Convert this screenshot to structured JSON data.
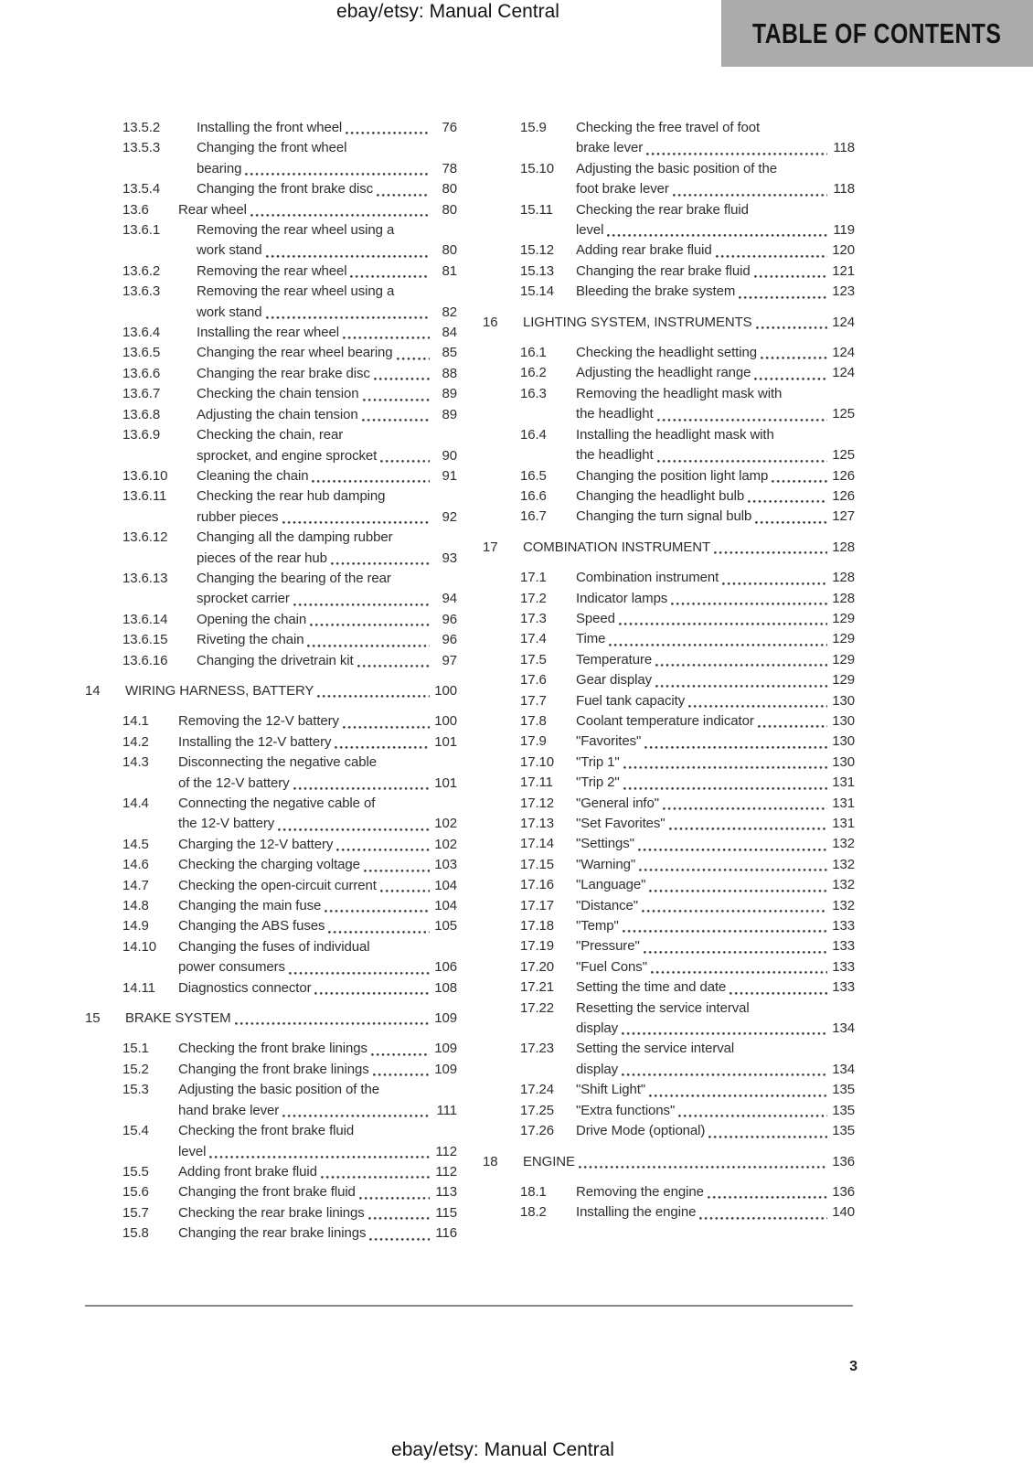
{
  "header": {
    "site_label": "ebay/etsy: Manual Central",
    "banner_title": "TABLE OF CONTENTS"
  },
  "footer": {
    "site_label": "ebay/etsy: Manual Central",
    "page_number": "3"
  },
  "colors": {
    "banner_bg": "#ababab",
    "body_text": "#2e2e2e",
    "rule": "#8a8a8a"
  },
  "toc": {
    "left": [
      {
        "level": "sub2",
        "num": "13.5.2",
        "title": "Installing the front wheel",
        "page": "76"
      },
      {
        "level": "sub2",
        "num": "13.5.3",
        "title": "Changing the front wheel\nbearing",
        "page": "78"
      },
      {
        "level": "sub2",
        "num": "13.5.4",
        "title": "Changing the front brake disc",
        "page": "80"
      },
      {
        "level": "sub",
        "num": "13.6",
        "title": "Rear wheel",
        "page": "80"
      },
      {
        "level": "sub2",
        "num": "13.6.1",
        "title": "Removing the rear wheel using a\nwork stand",
        "page": "80"
      },
      {
        "level": "sub2",
        "num": "13.6.2",
        "title": "Removing the rear wheel",
        "page": "81"
      },
      {
        "level": "sub2",
        "num": "13.6.3",
        "title": "Removing the rear wheel using a\nwork stand",
        "page": "82"
      },
      {
        "level": "sub2",
        "num": "13.6.4",
        "title": "Installing the rear wheel",
        "page": "84"
      },
      {
        "level": "sub2",
        "num": "13.6.5",
        "title": "Changing the rear wheel bearing",
        "page": "85"
      },
      {
        "level": "sub2",
        "num": "13.6.6",
        "title": "Changing the rear brake disc",
        "page": "88"
      },
      {
        "level": "sub2",
        "num": "13.6.7",
        "title": "Checking the chain tension",
        "page": "89"
      },
      {
        "level": "sub2",
        "num": "13.6.8",
        "title": "Adjusting the chain tension",
        "page": "89"
      },
      {
        "level": "sub2",
        "num": "13.6.9",
        "title": "Checking the chain, rear\nsprocket, and engine sprocket",
        "page": "90"
      },
      {
        "level": "sub2",
        "num": "13.6.10",
        "title": "Cleaning the chain",
        "page": "91"
      },
      {
        "level": "sub2",
        "num": "13.6.11",
        "title": "Checking the rear hub damping\nrubber pieces",
        "page": "92"
      },
      {
        "level": "sub2",
        "num": "13.6.12",
        "title": "Changing all the damping rubber\npieces of the rear hub",
        "page": "93"
      },
      {
        "level": "sub2",
        "num": "13.6.13",
        "title": "Changing the bearing of the rear\nsprocket carrier",
        "page": "94"
      },
      {
        "level": "sub2",
        "num": "13.6.14",
        "title": "Opening the chain",
        "page": "96"
      },
      {
        "level": "sub2",
        "num": "13.6.15",
        "title": "Riveting the chain",
        "page": "96"
      },
      {
        "level": "sub2",
        "num": "13.6.16",
        "title": "Changing the drivetrain kit",
        "page": "97"
      },
      {
        "level": "section",
        "num": "14",
        "title": "WIRING HARNESS, BATTERY",
        "page": "100"
      },
      {
        "level": "sub",
        "num": "14.1",
        "title": "Removing the 12-V battery",
        "page": "100"
      },
      {
        "level": "sub",
        "num": "14.2",
        "title": "Installing the 12-V battery",
        "page": "101"
      },
      {
        "level": "sub",
        "num": "14.3",
        "title": "Disconnecting the negative cable\nof the 12-V battery",
        "page": "101"
      },
      {
        "level": "sub",
        "num": "14.4",
        "title": "Connecting the negative cable of\nthe 12-V battery",
        "page": "102"
      },
      {
        "level": "sub",
        "num": "14.5",
        "title": "Charging the 12-V battery",
        "page": "102"
      },
      {
        "level": "sub",
        "num": "14.6",
        "title": "Checking the charging voltage",
        "page": "103"
      },
      {
        "level": "sub",
        "num": "14.7",
        "title": "Checking the open-circuit current",
        "page": "104"
      },
      {
        "level": "sub",
        "num": "14.8",
        "title": "Changing the main fuse",
        "page": "104"
      },
      {
        "level": "sub",
        "num": "14.9",
        "title": "Changing the ABS fuses",
        "page": "105"
      },
      {
        "level": "sub",
        "num": "14.10",
        "title": "Changing the fuses of individual\npower consumers",
        "page": "106"
      },
      {
        "level": "sub",
        "num": "14.11",
        "title": "Diagnostics connector",
        "page": "108"
      },
      {
        "level": "section",
        "num": "15",
        "title": "BRAKE SYSTEM",
        "page": "109"
      },
      {
        "level": "sub",
        "num": "15.1",
        "title": "Checking the front brake linings",
        "page": "109"
      },
      {
        "level": "sub",
        "num": "15.2",
        "title": "Changing the front brake linings",
        "page": "109"
      },
      {
        "level": "sub",
        "num": "15.3",
        "title": "Adjusting the basic position of the\nhand brake lever",
        "page": "111"
      },
      {
        "level": "sub",
        "num": "15.4",
        "title": "Checking the front brake fluid\nlevel",
        "page": "112"
      },
      {
        "level": "sub",
        "num": "15.5",
        "title": "Adding front brake fluid",
        "page": "112"
      },
      {
        "level": "sub",
        "num": "15.6",
        "title": "Changing the front brake fluid",
        "page": "113"
      },
      {
        "level": "sub",
        "num": "15.7",
        "title": "Checking the rear brake linings",
        "page": "115"
      },
      {
        "level": "sub",
        "num": "15.8",
        "title": "Changing the rear brake linings",
        "page": "116"
      }
    ],
    "right": [
      {
        "level": "sub",
        "num": "15.9",
        "title": "Checking the free travel of foot\nbrake lever",
        "page": "118"
      },
      {
        "level": "sub",
        "num": "15.10",
        "title": "Adjusting the basic position of the\nfoot brake lever",
        "page": "118"
      },
      {
        "level": "sub",
        "num": "15.11",
        "title": "Checking the rear brake fluid\nlevel",
        "page": "119"
      },
      {
        "level": "sub",
        "num": "15.12",
        "title": "Adding rear brake fluid",
        "page": "120"
      },
      {
        "level": "sub",
        "num": "15.13",
        "title": "Changing the rear brake fluid",
        "page": "121"
      },
      {
        "level": "sub",
        "num": "15.14",
        "title": "Bleeding the brake system",
        "page": "123"
      },
      {
        "level": "section",
        "num": "16",
        "title": "LIGHTING SYSTEM, INSTRUMENTS",
        "page": "124"
      },
      {
        "level": "sub",
        "num": "16.1",
        "title": "Checking the headlight setting",
        "page": "124"
      },
      {
        "level": "sub",
        "num": "16.2",
        "title": "Adjusting the headlight range",
        "page": "124"
      },
      {
        "level": "sub",
        "num": "16.3",
        "title": "Removing the headlight mask with\nthe headlight",
        "page": "125"
      },
      {
        "level": "sub",
        "num": "16.4",
        "title": "Installing the headlight mask with\nthe headlight",
        "page": "125"
      },
      {
        "level": "sub",
        "num": "16.5",
        "title": "Changing the position light lamp",
        "page": "126"
      },
      {
        "level": "sub",
        "num": "16.6",
        "title": "Changing the headlight bulb",
        "page": "126"
      },
      {
        "level": "sub",
        "num": "16.7",
        "title": "Changing the turn signal bulb",
        "page": "127"
      },
      {
        "level": "section",
        "num": "17",
        "title": "COMBINATION INSTRUMENT",
        "page": "128"
      },
      {
        "level": "sub",
        "num": "17.1",
        "title": "Combination instrument",
        "page": "128"
      },
      {
        "level": "sub",
        "num": "17.2",
        "title": "Indicator lamps",
        "page": "128"
      },
      {
        "level": "sub",
        "num": "17.3",
        "title": "Speed",
        "page": "129"
      },
      {
        "level": "sub",
        "num": "17.4",
        "title": "Time",
        "page": "129"
      },
      {
        "level": "sub",
        "num": "17.5",
        "title": "Temperature",
        "page": "129"
      },
      {
        "level": "sub",
        "num": "17.6",
        "title": "Gear display",
        "page": "129"
      },
      {
        "level": "sub",
        "num": "17.7",
        "title": "Fuel tank capacity",
        "page": "130"
      },
      {
        "level": "sub",
        "num": "17.8",
        "title": "Coolant temperature indicator",
        "page": "130"
      },
      {
        "level": "sub",
        "num": "17.9",
        "title": "\"Favorites\"",
        "page": "130"
      },
      {
        "level": "sub",
        "num": "17.10",
        "title": "\"Trip 1\"",
        "page": "130"
      },
      {
        "level": "sub",
        "num": "17.11",
        "title": "\"Trip 2\"",
        "page": "131"
      },
      {
        "level": "sub",
        "num": "17.12",
        "title": "\"General info\"",
        "page": "131"
      },
      {
        "level": "sub",
        "num": "17.13",
        "title": "\"Set Favorites\"",
        "page": "131"
      },
      {
        "level": "sub",
        "num": "17.14",
        "title": "\"Settings\"",
        "page": "132"
      },
      {
        "level": "sub",
        "num": "17.15",
        "title": "\"Warning\"",
        "page": "132"
      },
      {
        "level": "sub",
        "num": "17.16",
        "title": "\"Language\"",
        "page": "132"
      },
      {
        "level": "sub",
        "num": "17.17",
        "title": "\"Distance\"",
        "page": "132"
      },
      {
        "level": "sub",
        "num": "17.18",
        "title": "\"Temp\"",
        "page": "133"
      },
      {
        "level": "sub",
        "num": "17.19",
        "title": "\"Pressure\"",
        "page": "133"
      },
      {
        "level": "sub",
        "num": "17.20",
        "title": "\"Fuel Cons\"",
        "page": "133"
      },
      {
        "level": "sub",
        "num": "17.21",
        "title": "Setting the time and date",
        "page": "133"
      },
      {
        "level": "sub",
        "num": "17.22",
        "title": "Resetting the service interval\ndisplay",
        "page": "134"
      },
      {
        "level": "sub",
        "num": "17.23",
        "title": "Setting the service interval\ndisplay",
        "page": "134"
      },
      {
        "level": "sub",
        "num": "17.24",
        "title": "\"Shift Light\"",
        "page": "135"
      },
      {
        "level": "sub",
        "num": "17.25",
        "title": "\"Extra functions\"",
        "page": "135"
      },
      {
        "level": "sub",
        "num": "17.26",
        "title": "Drive Mode (optional)",
        "page": "135"
      },
      {
        "level": "section",
        "num": "18",
        "title": "ENGINE",
        "page": "136"
      },
      {
        "level": "sub",
        "num": "18.1",
        "title": "Removing the engine",
        "page": "136"
      },
      {
        "level": "sub",
        "num": "18.2",
        "title": "Installing the engine",
        "page": "140"
      }
    ]
  }
}
